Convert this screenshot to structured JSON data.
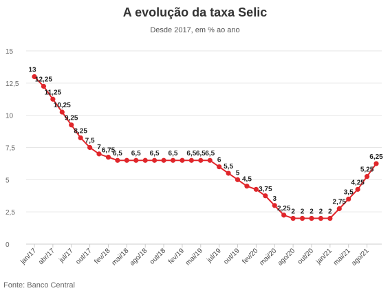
{
  "title": "A evolução da taxa Selic",
  "subtitle": "Desde 2017, em % ao ano",
  "source": "Fonte: Banco Central",
  "colors": {
    "line": "#e0262b",
    "grid": "#e6e6e6",
    "axis": "#cccccc"
  },
  "chart_data": {
    "type": "line",
    "title": "A evolução da taxa Selic",
    "subtitle": "Desde 2017, em % ao ano",
    "xlabel": "",
    "ylabel": "",
    "ylim": [
      0,
      15
    ],
    "yticks": [
      0,
      2.5,
      5,
      7.5,
      10,
      12.5,
      15
    ],
    "ytick_labels": [
      "0",
      "2,5",
      "5",
      "7,5",
      "10",
      "12,5",
      "15"
    ],
    "xtick_labels": [
      "jan/17",
      "abr/17",
      "jul/17",
      "out/17",
      "fev/18",
      "mai/18",
      "ago/18",
      "out/18",
      "fev/19",
      "mai/19",
      "jul/19",
      "out/19",
      "fev/20",
      "mai/20",
      "ago/20",
      "out/20",
      "jan/21",
      "mai/21",
      "ago/21"
    ],
    "xtick_point_index": [
      0,
      2,
      4,
      6,
      8,
      10,
      12,
      14,
      16,
      18,
      20,
      22,
      24,
      26,
      28,
      30,
      32,
      34,
      36
    ],
    "grid": true,
    "legend": "none",
    "series": [
      {
        "values": [
          13,
          12.25,
          11.25,
          10.25,
          9.25,
          8.25,
          7.5,
          7,
          6.75,
          6.5,
          6.5,
          6.5,
          6.5,
          6.5,
          6.5,
          6.5,
          6.5,
          6.5,
          6.5,
          6.5,
          6,
          5.5,
          5,
          4.5,
          4.25,
          3.75,
          3,
          2.25,
          2,
          2,
          2,
          2,
          2,
          2.75,
          3.5,
          4.25,
          5.25,
          6.25
        ],
        "labels": [
          "13",
          "12,25",
          "11,25",
          "10,25",
          "9,25",
          "8,25",
          "7,5",
          "7",
          "6,75",
          "6,5",
          "",
          "6,5",
          "",
          "6,5",
          "",
          "6,5",
          "",
          "6,5",
          "6,5",
          "6,5",
          "6",
          "5,5",
          "5",
          "4,5",
          "",
          "3,75",
          "3",
          "2,25",
          "2",
          "2",
          "2",
          "2",
          "2",
          "2,75",
          "3,5",
          "4,25",
          "5,25",
          "6,25"
        ]
      }
    ]
  }
}
